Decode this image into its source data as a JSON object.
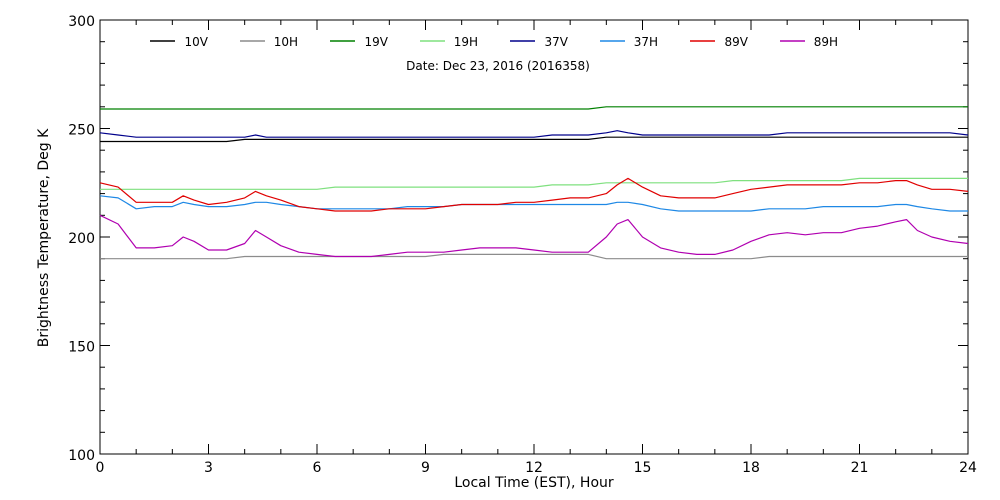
{
  "chart_data": {
    "type": "line",
    "subtitle": "Date: Dec 23, 2016 (2016358)",
    "xlabel": "Local Time (EST), Hour",
    "ylabel": "Brightness Temperature, Deg K",
    "xlim": [
      0,
      24
    ],
    "ylim": [
      100,
      300
    ],
    "xticks": [
      0,
      3,
      6,
      9,
      12,
      15,
      18,
      21,
      24
    ],
    "yticks": [
      100,
      150,
      200,
      250,
      300
    ],
    "x": [
      0,
      0.5,
      1,
      1.5,
      2,
      2.3,
      2.6,
      3,
      3.5,
      4,
      4.3,
      4.6,
      5,
      5.5,
      6,
      6.5,
      7,
      7.5,
      8,
      8.5,
      9,
      9.5,
      10,
      10.5,
      11,
      11.5,
      12,
      12.5,
      13,
      13.5,
      14,
      14.3,
      14.6,
      15,
      15.5,
      16,
      16.5,
      17,
      17.5,
      18,
      18.5,
      19,
      19.5,
      20,
      20.5,
      21,
      21.5,
      22,
      22.3,
      22.6,
      23,
      23.5,
      24
    ],
    "series": [
      {
        "name": "10V",
        "color": "#000000",
        "values": [
          244,
          244,
          244,
          244,
          244,
          244,
          244,
          244,
          244,
          245,
          245,
          245,
          245,
          245,
          245,
          245,
          245,
          245,
          245,
          245,
          245,
          245,
          245,
          245,
          245,
          245,
          245,
          245,
          245,
          245,
          246,
          246,
          246,
          246,
          246,
          246,
          246,
          246,
          246,
          246,
          246,
          246,
          246,
          246,
          246,
          246,
          246,
          246,
          246,
          246,
          246,
          246,
          246
        ]
      },
      {
        "name": "10H",
        "color": "#8c8c8c",
        "values": [
          190,
          190,
          190,
          190,
          190,
          190,
          190,
          190,
          190,
          191,
          191,
          191,
          191,
          191,
          191,
          191,
          191,
          191,
          191,
          191,
          191,
          192,
          192,
          192,
          192,
          192,
          192,
          192,
          192,
          192,
          190,
          190,
          190,
          190,
          190,
          190,
          190,
          190,
          190,
          190,
          191,
          191,
          191,
          191,
          191,
          191,
          191,
          191,
          191,
          191,
          191,
          191,
          191
        ]
      },
      {
        "name": "19V",
        "color": "#008000",
        "values": [
          259,
          259,
          259,
          259,
          259,
          259,
          259,
          259,
          259,
          259,
          259,
          259,
          259,
          259,
          259,
          259,
          259,
          259,
          259,
          259,
          259,
          259,
          259,
          259,
          259,
          259,
          259,
          259,
          259,
          259,
          260,
          260,
          260,
          260,
          260,
          260,
          260,
          260,
          260,
          260,
          260,
          260,
          260,
          260,
          260,
          260,
          260,
          260,
          260,
          260,
          260,
          260,
          260
        ]
      },
      {
        "name": "19H",
        "color": "#7fe07f",
        "values": [
          222,
          222,
          222,
          222,
          222,
          222,
          222,
          222,
          222,
          222,
          222,
          222,
          222,
          222,
          222,
          223,
          223,
          223,
          223,
          223,
          223,
          223,
          223,
          223,
          223,
          223,
          223,
          224,
          224,
          224,
          225,
          225,
          225,
          225,
          225,
          225,
          225,
          225,
          226,
          226,
          226,
          226,
          226,
          226,
          226,
          227,
          227,
          227,
          227,
          227,
          227,
          227,
          227
        ]
      },
      {
        "name": "37V",
        "color": "#00008b",
        "values": [
          248,
          247,
          246,
          246,
          246,
          246,
          246,
          246,
          246,
          246,
          247,
          246,
          246,
          246,
          246,
          246,
          246,
          246,
          246,
          246,
          246,
          246,
          246,
          246,
          246,
          246,
          246,
          247,
          247,
          247,
          248,
          249,
          248,
          247,
          247,
          247,
          247,
          247,
          247,
          247,
          247,
          248,
          248,
          248,
          248,
          248,
          248,
          248,
          248,
          248,
          248,
          248,
          247
        ]
      },
      {
        "name": "37H",
        "color": "#1e88e5",
        "values": [
          219,
          218,
          213,
          214,
          214,
          216,
          215,
          214,
          214,
          215,
          216,
          216,
          215,
          214,
          213,
          213,
          213,
          213,
          213,
          214,
          214,
          214,
          215,
          215,
          215,
          215,
          215,
          215,
          215,
          215,
          215,
          216,
          216,
          215,
          213,
          212,
          212,
          212,
          212,
          212,
          213,
          213,
          213,
          214,
          214,
          214,
          214,
          215,
          215,
          214,
          213,
          212,
          212
        ]
      },
      {
        "name": "89V",
        "color": "#e00000",
        "values": [
          225,
          223,
          216,
          216,
          216,
          219,
          217,
          215,
          216,
          218,
          221,
          219,
          217,
          214,
          213,
          212,
          212,
          212,
          213,
          213,
          213,
          214,
          215,
          215,
          215,
          216,
          216,
          217,
          218,
          218,
          220,
          224,
          227,
          223,
          219,
          218,
          218,
          218,
          220,
          222,
          223,
          224,
          224,
          224,
          224,
          225,
          225,
          226,
          226,
          224,
          222,
          222,
          221
        ]
      },
      {
        "name": "89H",
        "color": "#b000b0",
        "values": [
          210,
          206,
          195,
          195,
          196,
          200,
          198,
          194,
          194,
          197,
          203,
          200,
          196,
          193,
          192,
          191,
          191,
          191,
          192,
          193,
          193,
          193,
          194,
          195,
          195,
          195,
          194,
          193,
          193,
          193,
          200,
          206,
          208,
          200,
          195,
          193,
          192,
          192,
          194,
          198,
          201,
          202,
          201,
          202,
          202,
          204,
          205,
          207,
          208,
          203,
          200,
          198,
          197
        ]
      }
    ]
  }
}
